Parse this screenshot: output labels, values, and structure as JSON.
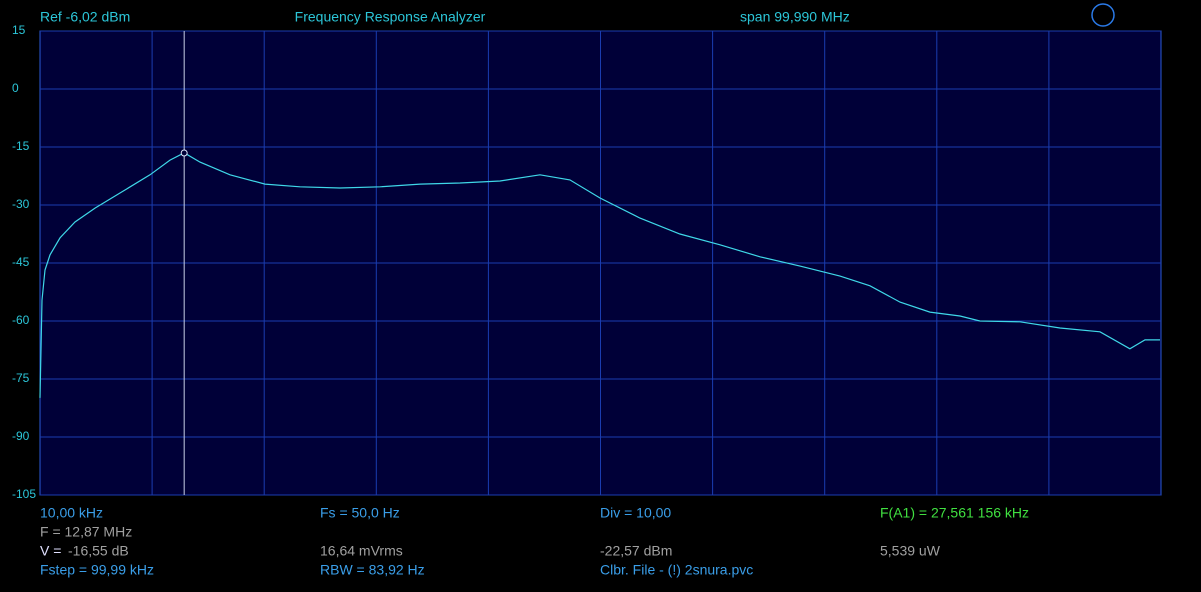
{
  "chart_data": {
    "type": "line",
    "title": "Frequency Response Analyzer",
    "ref": "Ref  -6,02 dBm",
    "span": "span 99,990 MHz",
    "x_start_label": "10,00 kHz",
    "x": [
      0.01,
      0.19,
      0.46,
      0.9,
      1.79,
      3.13,
      4.92,
      7.15,
      9.82,
      11.61,
      12.87,
      14.28,
      16.96,
      20.08,
      23.2,
      26.77,
      30.34,
      33.91,
      37.47,
      41.04,
      44.61,
      47.28,
      49.96,
      53.53,
      57.09,
      60.66,
      64.23,
      67.8,
      71.37,
      74.04,
      76.72,
      79.39,
      82.07,
      83.85,
      87.42,
      90.99,
      94.56,
      97.23,
      98.57,
      99.91
    ],
    "values": [
      -79.9,
      -54.6,
      -46.8,
      -42.9,
      -38.5,
      -34.4,
      -30.8,
      -26.9,
      -22.2,
      -18.4,
      -16.5,
      -18.9,
      -22.2,
      -24.6,
      -25.3,
      -25.6,
      -25.3,
      -24.6,
      -24.3,
      -23.8,
      -22.2,
      -23.5,
      -28.2,
      -33.4,
      -37.5,
      -40.3,
      -43.4,
      -45.8,
      -48.4,
      -50.9,
      -55.1,
      -57.7,
      -58.7,
      -60.0,
      -60.2,
      -61.8,
      -62.8,
      -67.2,
      -64.9,
      -64.9
    ],
    "color": "#3fd8e8",
    "xlim": [
      0.01,
      100
    ],
    "ylim": [
      -105,
      15
    ],
    "yticks": [
      15,
      0,
      -15,
      -30,
      -45,
      -60,
      -75,
      -90,
      -105
    ],
    "grid": true,
    "cursor": {
      "x": 12.87,
      "y": -16.55
    },
    "readout": {
      "f": "F = 12,87 MHz",
      "v_label": "V =",
      "v_value": "-16,55 dB",
      "fstep": "Fstep = 99,99 kHz",
      "fs": "Fs = 50,0 Hz",
      "vrms": "16,64 mVrms",
      "rbw": "RBW = 83,92 Hz",
      "div": "Div = 10,00",
      "dbm": "-22,57 dBm",
      "clbr": "Clbr. File - (!) 2snura.pvc",
      "fa1": "F(A1) = 27,561 156 kHz",
      "power": "5,539 uW"
    }
  }
}
